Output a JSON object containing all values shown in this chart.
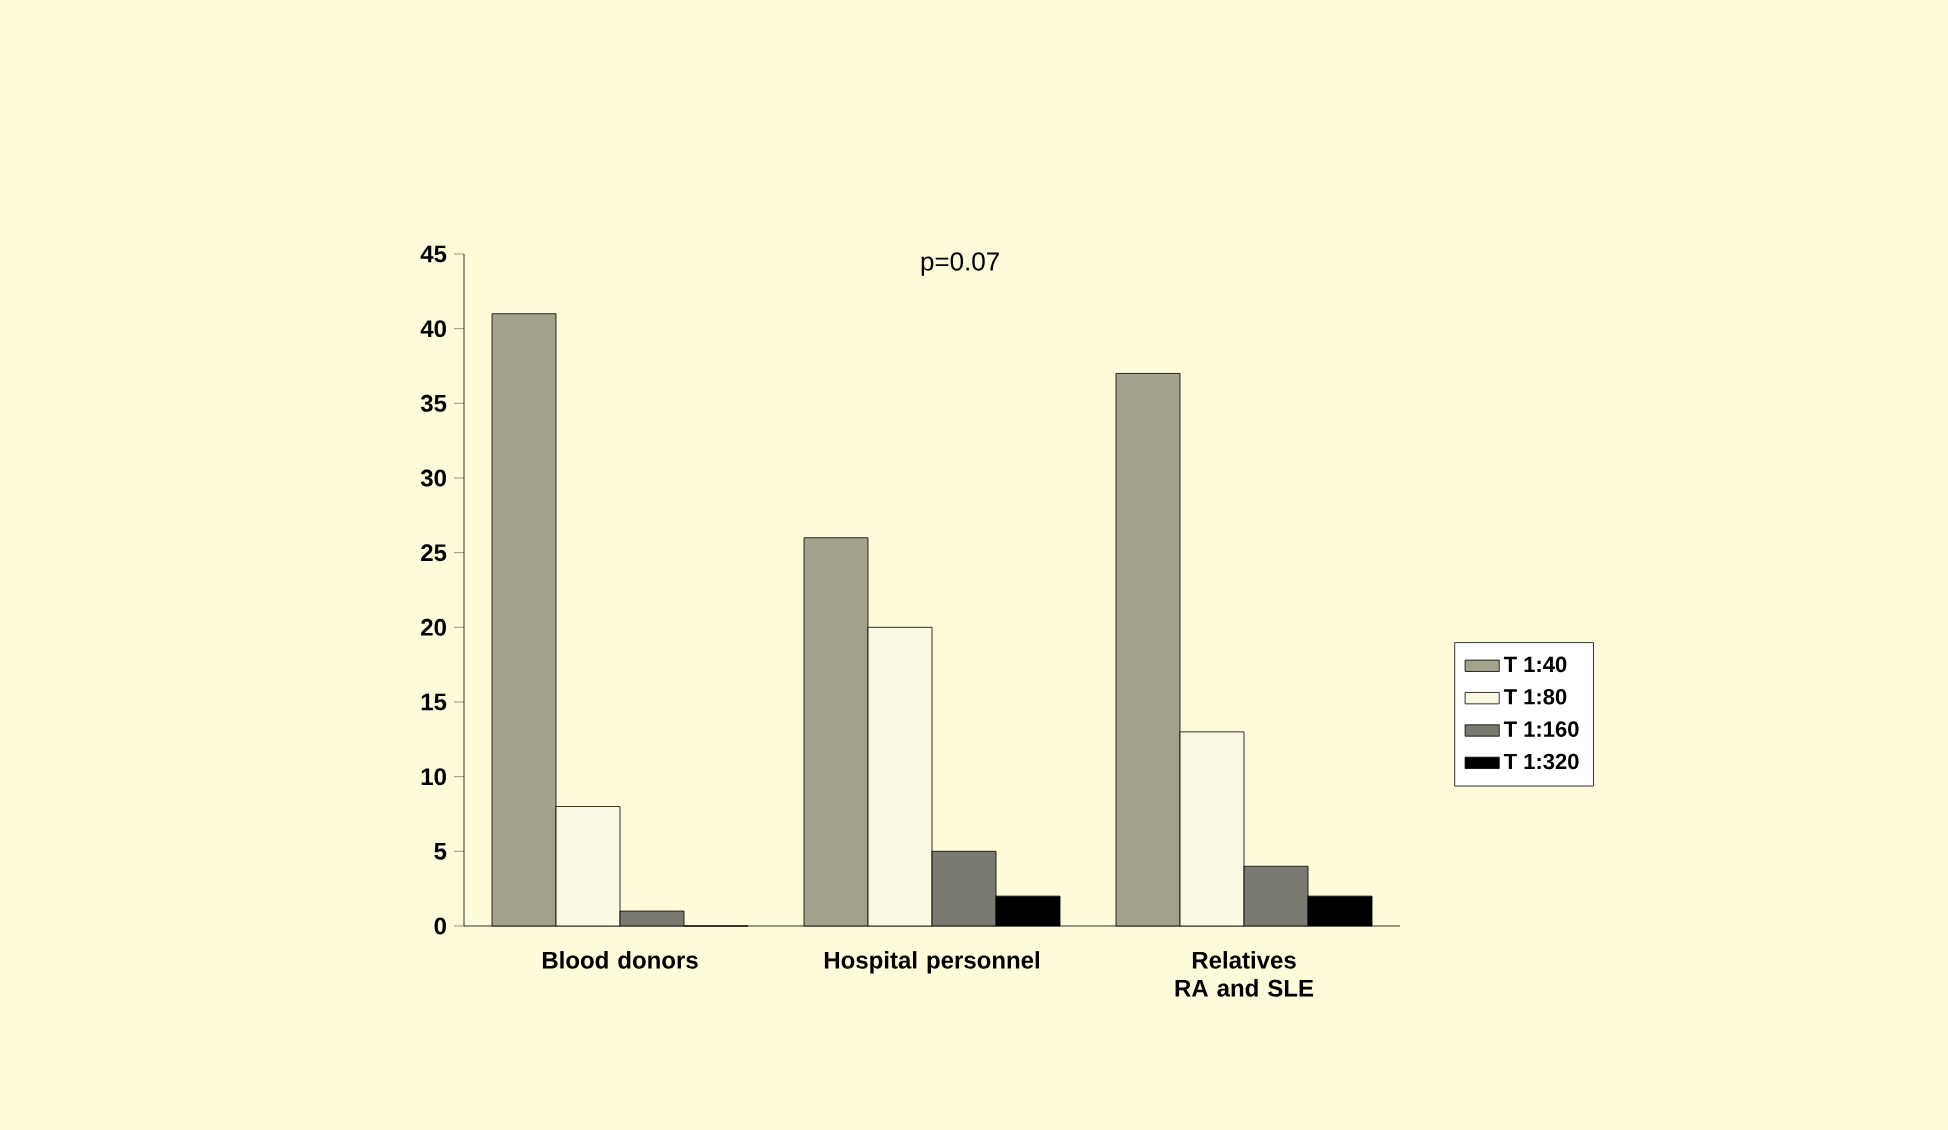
{
  "chart_data": {
    "type": "bar",
    "categories": [
      "Blood donors",
      "Hospital personnel",
      "Relatives RA and SLE"
    ],
    "series": [
      {
        "name": "T 1:40",
        "color": "#a3a28c",
        "values": [
          41,
          26,
          37
        ]
      },
      {
        "name": "T 1:80",
        "color": "#fbf8e4",
        "values": [
          8,
          20,
          13
        ]
      },
      {
        "name": "T 1:160",
        "color": "#7a7a70",
        "values": [
          1,
          5,
          4
        ]
      },
      {
        "name": "T 1:320",
        "color": "#000000",
        "values": [
          0,
          2,
          2
        ]
      }
    ],
    "ylim": [
      0,
      45
    ],
    "yticks": [
      0,
      5,
      10,
      15,
      20,
      25,
      30,
      35,
      40,
      45
    ],
    "legend": "right",
    "grid": false,
    "annotations": [
      "p=0.07"
    ]
  }
}
